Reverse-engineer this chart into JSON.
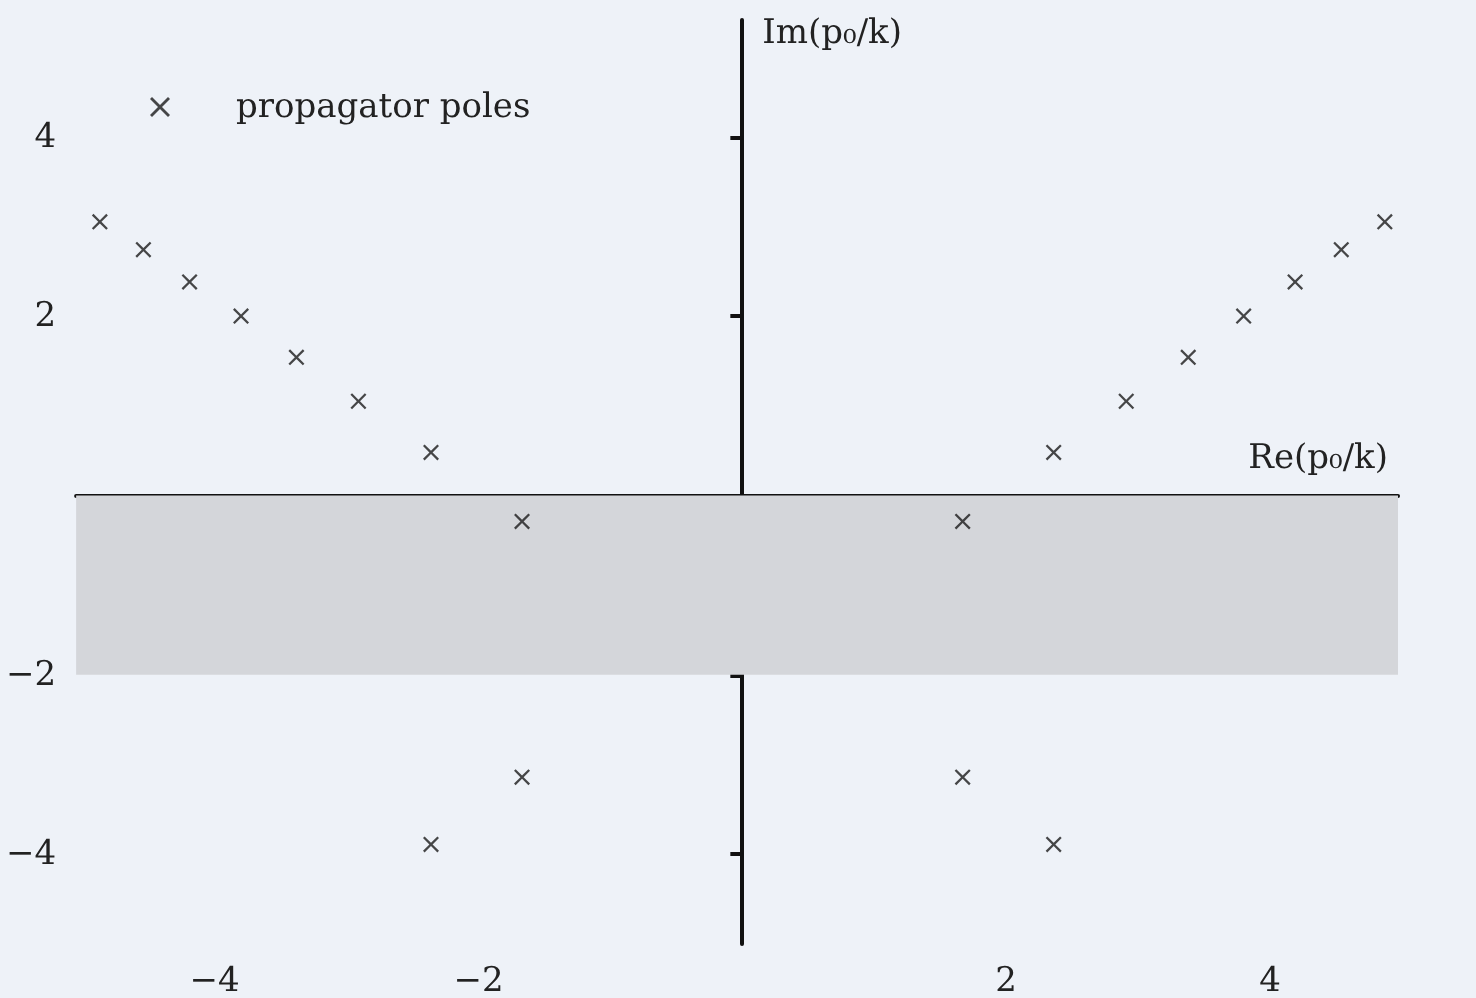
{
  "chart_data": {
    "type": "scatter",
    "xlabel": "Re(p₀/k)",
    "ylabel": "Im(p₀/k)",
    "xlim": [
      -5.05,
      4.97
    ],
    "ylim": [
      -5,
      5.3
    ],
    "xticks": [
      {
        "value": -4,
        "label": "−4"
      },
      {
        "value": -2,
        "label": "−2"
      },
      2,
      4
    ],
    "yticks": [
      {
        "value": -4,
        "label": "−4"
      },
      {
        "value": -2,
        "label": "−2"
      },
      2,
      4
    ],
    "series": [
      {
        "name": "propagator poles",
        "color": "#1a1a1a",
        "x": [
          1.67,
          2.36,
          2.91,
          3.38,
          3.8,
          4.19,
          4.54,
          4.87,
          -1.67,
          -2.36,
          -2.91,
          -3.38,
          -3.8,
          -4.19,
          -4.54,
          -4.87,
          1.67,
          2.36,
          -1.67,
          -2.36
        ],
        "values": [
          -0.29,
          0.48,
          1.05,
          1.54,
          2.0,
          2.38,
          2.74,
          3.05,
          -0.29,
          0.48,
          1.05,
          1.54,
          2.0,
          2.38,
          2.74,
          3.05,
          -3.14,
          -3.89,
          -3.14,
          -3.89
        ]
      }
    ],
    "bands": [
      {
        "axis": "y",
        "from": -2,
        "to": 0,
        "color": "#d4d6da"
      }
    ],
    "marker": "cross",
    "legend": "top left",
    "grid": false
  }
}
